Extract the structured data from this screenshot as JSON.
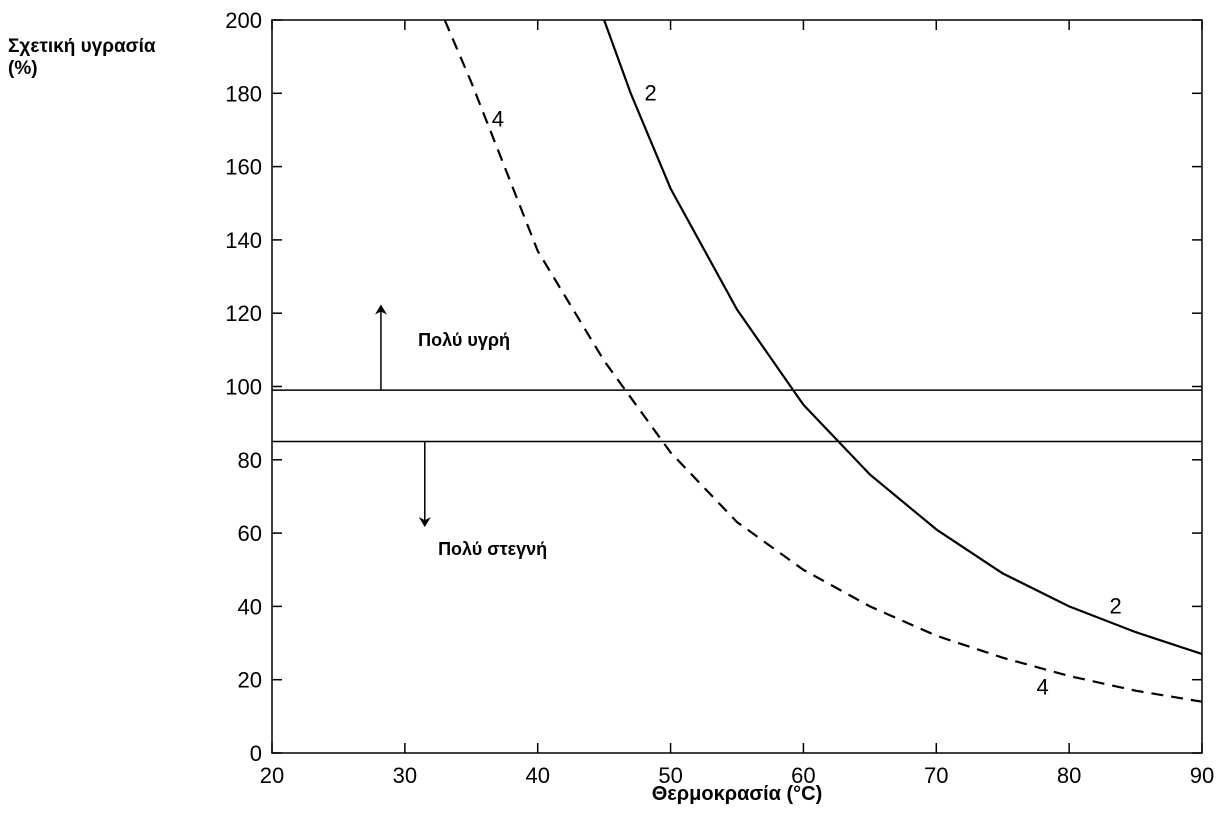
{
  "chart_data": {
    "type": "line",
    "ylabel_line1": "Σχετική υγρασία",
    "ylabel_line2": "(%)",
    "xlabel": "Θερμοκρασία  (°C)",
    "xlim": [
      20,
      90
    ],
    "ylim": [
      0,
      200
    ],
    "xticks": [
      20,
      30,
      40,
      50,
      60,
      70,
      80,
      90
    ],
    "yticks": [
      0,
      20,
      40,
      60,
      80,
      100,
      120,
      140,
      160,
      180,
      200
    ],
    "grid": false,
    "series": [
      {
        "name": "2",
        "style": "solid",
        "x": [
          45,
          47,
          50,
          55,
          60,
          65,
          70,
          75,
          80,
          85,
          90
        ],
        "y": [
          200,
          180,
          154,
          121,
          95,
          76,
          61,
          49,
          40,
          33,
          27
        ]
      },
      {
        "name": "4",
        "style": "dashed",
        "x": [
          33,
          35,
          37.5,
          40,
          45,
          50,
          55,
          60,
          65,
          70,
          75,
          80,
          85,
          90
        ],
        "y": [
          200,
          183,
          160,
          137,
          107,
          82,
          63,
          50,
          40,
          32,
          26,
          21,
          17,
          14
        ]
      }
    ],
    "reference_lines": [
      {
        "y": 99
      },
      {
        "y": 85
      }
    ],
    "annotations": [
      {
        "text": "Πολύ υγρή",
        "x": 31,
        "y": 111,
        "arrow": "up"
      },
      {
        "text": "Πολύ στεγνή",
        "x": 32.5,
        "y": 54,
        "arrow": "down"
      }
    ]
  }
}
